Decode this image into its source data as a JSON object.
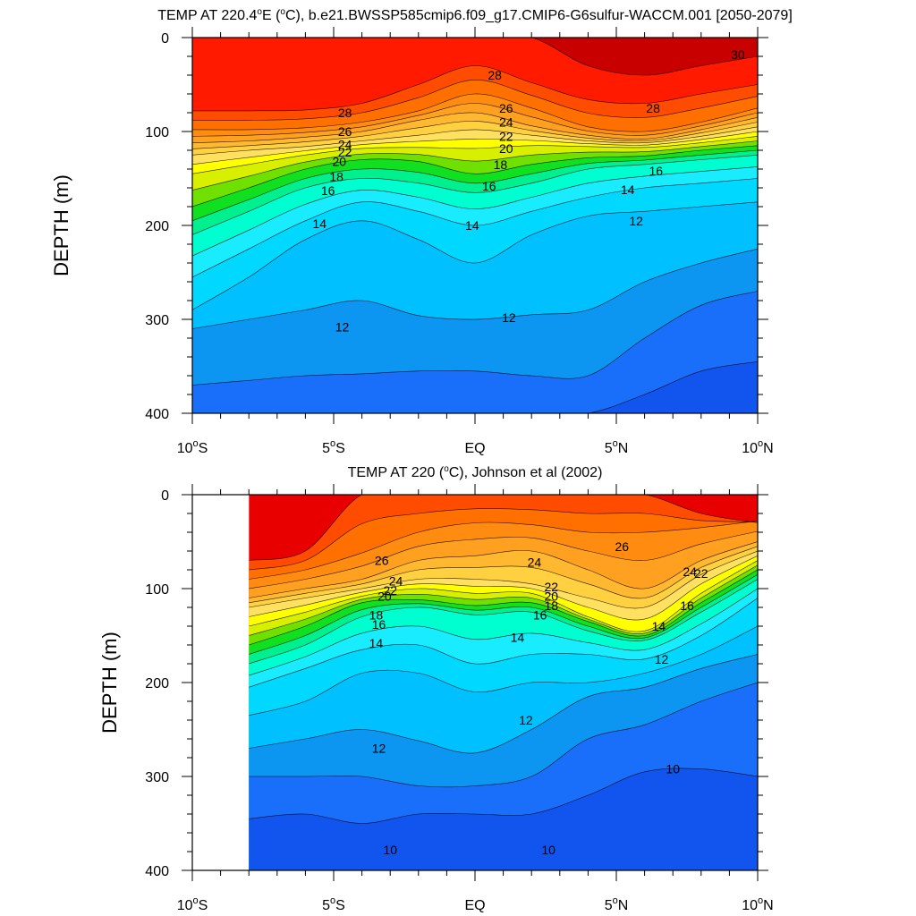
{
  "chart_data": [
    {
      "type": "contour",
      "title_parts": [
        "TEMP AT 220.4",
        "o",
        "E (",
        "o",
        "C), b.e21.BWSSP585cmip6.f09_g17.CMIP6-G6sulfur-WACCM.001 [2050-2079]"
      ],
      "ylabel": "DEPTH (m)",
      "xlim": [
        -10,
        10
      ],
      "ylim": [
        400,
        0
      ],
      "x_ticks": [
        {
          "value": -10,
          "num": "10",
          "deg": "o",
          "hemi": "S"
        },
        {
          "value": -5,
          "num": "5",
          "deg": "o",
          "hemi": "S"
        },
        {
          "value": 0,
          "num": "EQ",
          "deg": "",
          "hemi": ""
        },
        {
          "value": 5,
          "num": "5",
          "deg": "o",
          "hemi": "N"
        },
        {
          "value": 10,
          "num": "10",
          "deg": "o",
          "hemi": "N"
        }
      ],
      "y_ticks": [
        {
          "value": 0,
          "label": "0"
        },
        {
          "value": 100,
          "label": "100"
        },
        {
          "value": 200,
          "label": "200"
        },
        {
          "value": 300,
          "label": "300"
        },
        {
          "value": 400,
          "label": "400"
        }
      ],
      "data_x_range": [
        -10,
        10
      ],
      "isotherm_step": 1,
      "x": [
        -10,
        -8,
        -6,
        -4,
        -2,
        0,
        2,
        4,
        6,
        8,
        10
      ],
      "isotherms": [
        {
          "t": 29,
          "depth": [
            0,
            0,
            0,
            0,
            0,
            0,
            0,
            30,
            40,
            30,
            20
          ]
        },
        {
          "t": 28,
          "depth": [
            78,
            78,
            77,
            70,
            50,
            30,
            48,
            66,
            70,
            60,
            50
          ]
        },
        {
          "t": 26,
          "depth": [
            98,
            98,
            96,
            90,
            78,
            60,
            75,
            95,
            100,
            90,
            75
          ]
        },
        {
          "t": 24,
          "depth": [
            112,
            110,
            106,
            100,
            88,
            80,
            94,
            104,
            108,
            98,
            85
          ]
        },
        {
          "t": 22,
          "depth": [
            125,
            120,
            116,
            110,
            104,
            98,
            104,
            110,
            112,
            105,
            95
          ]
        },
        {
          "t": 20,
          "depth": [
            145,
            135,
            125,
            118,
            117,
            118,
            115,
            116,
            117,
            112,
            105
          ]
        },
        {
          "t": 18,
          "depth": [
            180,
            160,
            140,
            130,
            132,
            145,
            135,
            128,
            126,
            120,
            115
          ]
        },
        {
          "t": 16,
          "depth": [
            210,
            185,
            160,
            150,
            155,
            165,
            155,
            140,
            135,
            130,
            125
          ]
        },
        {
          "t": 14,
          "depth": [
            255,
            225,
            195,
            175,
            185,
            200,
            185,
            170,
            160,
            155,
            150
          ]
        },
        {
          "t": 13,
          "depth": [
            290,
            255,
            215,
            195,
            215,
            240,
            210,
            190,
            185,
            180,
            175
          ]
        },
        {
          "t": 12,
          "depth": [
            310,
            300,
            290,
            280,
            296,
            300,
            295,
            290,
            260,
            240,
            225
          ]
        },
        {
          "t": 11,
          "depth": [
            370,
            365,
            360,
            358,
            355,
            355,
            360,
            360,
            320,
            285,
            270
          ]
        },
        {
          "t": 10,
          "depth": [
            400,
            400,
            400,
            400,
            400,
            400,
            400,
            400,
            380,
            355,
            345
          ]
        }
      ],
      "contour_labels": [
        {
          "x": 0.7,
          "y": 40,
          "text": "28"
        },
        {
          "x": -4.6,
          "y": 80,
          "text": "28"
        },
        {
          "x": 6.3,
          "y": 75,
          "text": "28"
        },
        {
          "x": 9.3,
          "y": 18,
          "text": "30"
        },
        {
          "x": -4.6,
          "y": 100,
          "text": "26"
        },
        {
          "x": 1.1,
          "y": 75,
          "text": "26"
        },
        {
          "x": 1.1,
          "y": 90,
          "text": "24"
        },
        {
          "x": -4.6,
          "y": 114,
          "text": "24"
        },
        {
          "x": -4.6,
          "y": 122,
          "text": "22"
        },
        {
          "x": 1.1,
          "y": 105,
          "text": "22"
        },
        {
          "x": -4.8,
          "y": 132,
          "text": "20"
        },
        {
          "x": 1.1,
          "y": 118,
          "text": "20"
        },
        {
          "x": -4.9,
          "y": 148,
          "text": "18"
        },
        {
          "x": 0.9,
          "y": 135,
          "text": "18"
        },
        {
          "x": -5.2,
          "y": 163,
          "text": "16"
        },
        {
          "x": 0.5,
          "y": 158,
          "text": "16"
        },
        {
          "x": -5.5,
          "y": 198,
          "text": "14"
        },
        {
          "x": -0.1,
          "y": 200,
          "text": "14"
        },
        {
          "x": 5.4,
          "y": 162,
          "text": "14"
        },
        {
          "x": 6.4,
          "y": 142,
          "text": "16"
        },
        {
          "x": -4.7,
          "y": 308,
          "text": "12"
        },
        {
          "x": 1.2,
          "y": 298,
          "text": "12"
        },
        {
          "x": 5.7,
          "y": 195,
          "text": "12"
        }
      ]
    },
    {
      "type": "contour",
      "title_parts": [
        "TEMP AT 220 (",
        "o",
        "C), Johnson et al (2002)"
      ],
      "ylabel": "DEPTH (m)",
      "xlim": [
        -10,
        10
      ],
      "ylim": [
        400,
        0
      ],
      "x_ticks": [
        {
          "value": -10,
          "num": "10",
          "deg": "o",
          "hemi": "S"
        },
        {
          "value": -5,
          "num": "5",
          "deg": "o",
          "hemi": "S"
        },
        {
          "value": 0,
          "num": "EQ",
          "deg": "",
          "hemi": ""
        },
        {
          "value": 5,
          "num": "5",
          "deg": "o",
          "hemi": "N"
        },
        {
          "value": 10,
          "num": "10",
          "deg": "o",
          "hemi": "N"
        }
      ],
      "y_ticks": [
        {
          "value": 0,
          "label": "0"
        },
        {
          "value": 100,
          "label": "100"
        },
        {
          "value": 200,
          "label": "200"
        },
        {
          "value": 300,
          "label": "300"
        },
        {
          "value": 400,
          "label": "400"
        }
      ],
      "data_x_range": [
        -8,
        10
      ],
      "isotherm_step": 1,
      "x": [
        -8,
        -6,
        -4,
        -2,
        0,
        2,
        4,
        6,
        8,
        10
      ],
      "isotherms": [
        {
          "t": 28,
          "depth": [
            70,
            60,
            0,
            0,
            0,
            0,
            0,
            0,
            20,
            30
          ]
        },
        {
          "t": 26,
          "depth": [
            90,
            80,
            62,
            40,
            30,
            32,
            40,
            40,
            35,
            28
          ]
        },
        {
          "t": 24,
          "depth": [
            110,
            100,
            90,
            70,
            65,
            60,
            80,
            100,
            70,
            50
          ]
        },
        {
          "t": 22,
          "depth": [
            120,
            110,
            100,
            90,
            90,
            95,
            110,
            120,
            85,
            60
          ]
        },
        {
          "t": 20,
          "depth": [
            140,
            125,
            108,
            100,
            105,
            105,
            130,
            145,
            105,
            70
          ]
        },
        {
          "t": 18,
          "depth": [
            160,
            140,
            115,
            112,
            118,
            115,
            135,
            150,
            115,
            80
          ]
        },
        {
          "t": 16,
          "depth": [
            180,
            160,
            130,
            120,
            128,
            125,
            145,
            155,
            125,
            90
          ]
        },
        {
          "t": 14,
          "depth": [
            205,
            185,
            165,
            160,
            180,
            170,
            170,
            175,
            150,
            110
          ]
        },
        {
          "t": 13,
          "depth": [
            235,
            220,
            190,
            190,
            210,
            200,
            200,
            190,
            170,
            140
          ]
        },
        {
          "t": 12,
          "depth": [
            270,
            260,
            250,
            262,
            275,
            250,
            215,
            205,
            185,
            170
          ]
        },
        {
          "t": 11,
          "depth": [
            300,
            300,
            300,
            310,
            310,
            300,
            260,
            245,
            220,
            200
          ]
        },
        {
          "t": 10,
          "depth": [
            345,
            340,
            350,
            340,
            340,
            340,
            320,
            295,
            292,
            300
          ]
        }
      ],
      "contour_labels": [
        {
          "x": -3.3,
          "y": 70,
          "text": "26"
        },
        {
          "x": 2.1,
          "y": 72,
          "text": "24"
        },
        {
          "x": 5.2,
          "y": 55,
          "text": "26"
        },
        {
          "x": 7.6,
          "y": 82,
          "text": "24"
        },
        {
          "x": 8.0,
          "y": 84,
          "text": "22"
        },
        {
          "x": -2.8,
          "y": 92,
          "text": "24"
        },
        {
          "x": -3.0,
          "y": 102,
          "text": "22"
        },
        {
          "x": -3.2,
          "y": 108,
          "text": "20"
        },
        {
          "x": 2.7,
          "y": 98,
          "text": "22"
        },
        {
          "x": 2.7,
          "y": 108,
          "text": "20"
        },
        {
          "x": 2.7,
          "y": 118,
          "text": "18"
        },
        {
          "x": 2.3,
          "y": 128,
          "text": "16"
        },
        {
          "x": -3.5,
          "y": 128,
          "text": "18"
        },
        {
          "x": -3.4,
          "y": 138,
          "text": "16"
        },
        {
          "x": -3.5,
          "y": 158,
          "text": "14"
        },
        {
          "x": 1.5,
          "y": 152,
          "text": "14"
        },
        {
          "x": 7.5,
          "y": 118,
          "text": "16"
        },
        {
          "x": 6.5,
          "y": 140,
          "text": "14"
        },
        {
          "x": 6.6,
          "y": 175,
          "text": "12"
        },
        {
          "x": -3.4,
          "y": 270,
          "text": "12"
        },
        {
          "x": 1.8,
          "y": 240,
          "text": "12"
        },
        {
          "x": 7.0,
          "y": 292,
          "text": "10"
        },
        {
          "x": -3.0,
          "y": 378,
          "text": "10"
        },
        {
          "x": 2.6,
          "y": 378,
          "text": "10"
        }
      ]
    }
  ]
}
